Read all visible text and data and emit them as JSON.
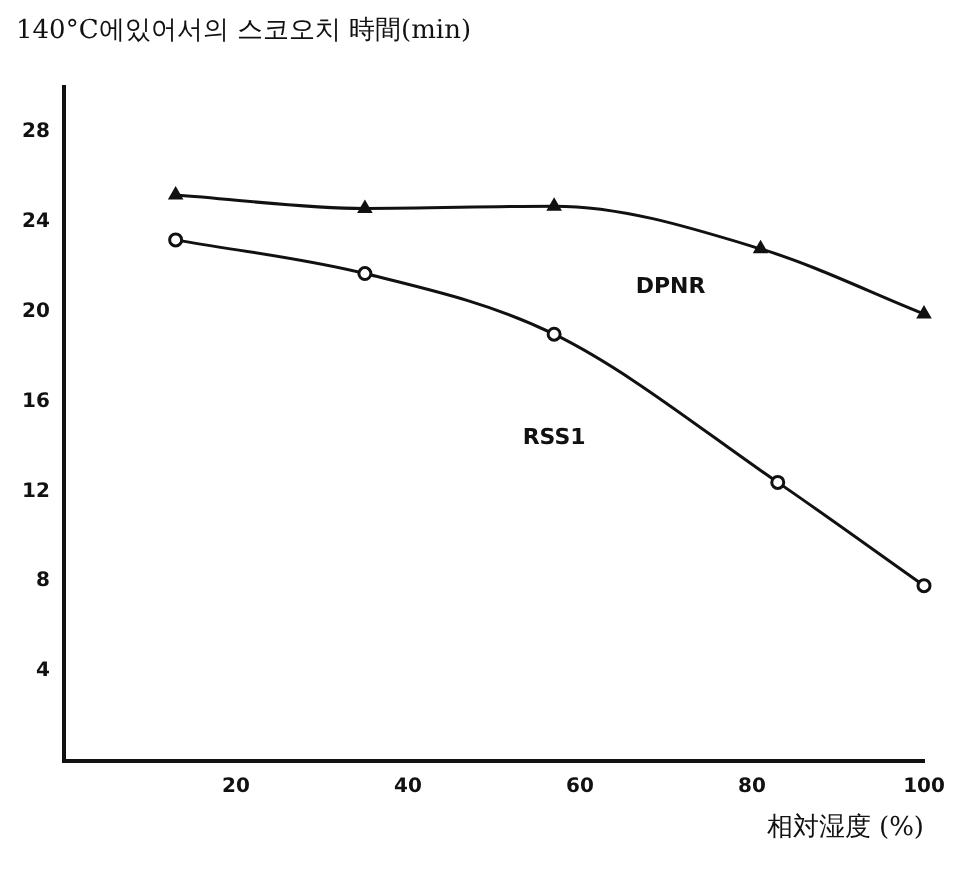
{
  "chart_data": {
    "type": "line",
    "title": "140°C에있어서의 스코오치 時間(min)",
    "xlabel": "相対湿度 (%)",
    "xlim": [
      0,
      100
    ],
    "xticks": [
      20,
      40,
      60,
      80,
      100
    ],
    "ylim": [
      0,
      30
    ],
    "yticks": [
      4,
      8,
      12,
      16,
      20,
      24,
      28
    ],
    "grid": false,
    "legend": false,
    "series": [
      {
        "name": "DPNR",
        "color": "#111111",
        "marker": "triangle",
        "x": [
          13,
          35,
          57,
          81,
          100
        ],
        "values": [
          25.2,
          24.6,
          24.7,
          22.8,
          19.9
        ]
      },
      {
        "name": "RSS1",
        "color": "#111111",
        "marker": "circle",
        "x": [
          13,
          35,
          57,
          83,
          100
        ],
        "values": [
          23.2,
          21.7,
          19.0,
          12.4,
          7.8
        ]
      }
    ]
  }
}
